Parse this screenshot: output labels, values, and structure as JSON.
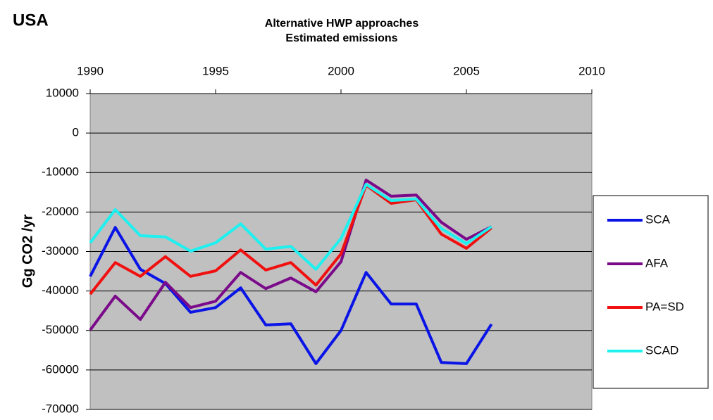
{
  "chart_data": {
    "type": "line",
    "annotation": "USA",
    "title": "Alternative HWP approaches",
    "subtitle": "Estimated emissions",
    "y_label": "Gg CO2 /yr",
    "x": [
      1990,
      1991,
      1992,
      1993,
      1994,
      1995,
      1996,
      1997,
      1998,
      1999,
      2000,
      2001,
      2002,
      2003,
      2004,
      2005,
      2006
    ],
    "xlim": [
      1990,
      2010
    ],
    "xticks": [
      1990,
      1995,
      2000,
      2005,
      2010
    ],
    "ylim": [
      -70000,
      10000
    ],
    "yticks": [
      -70000,
      -60000,
      -50000,
      -40000,
      -30000,
      -20000,
      -10000,
      0,
      10000
    ],
    "grid": true,
    "legend": "right",
    "series": [
      {
        "name": "SCA",
        "color": "#0a14e6",
        "values": [
          -36300,
          -23900,
          -34500,
          -38100,
          -45400,
          -44200,
          -39200,
          -48600,
          -48300,
          -58400,
          -50000,
          -35300,
          -43300,
          -43300,
          -58100,
          -58400,
          -48400
        ]
      },
      {
        "name": "AFA",
        "color": "#7a0a8a",
        "values": [
          -49900,
          -41300,
          -47200,
          -37800,
          -44200,
          -42600,
          -35300,
          -39400,
          -36700,
          -40200,
          -32600,
          -11900,
          -16000,
          -15700,
          -22600,
          -26900,
          -23700
        ]
      },
      {
        "name": "PA=SD",
        "color": "#f01010",
        "values": [
          -40800,
          -32800,
          -36300,
          -31300,
          -36300,
          -34900,
          -29600,
          -34700,
          -32800,
          -38500,
          -30600,
          -13200,
          -17800,
          -16900,
          -25600,
          -29200,
          -24000
        ]
      },
      {
        "name": "SCAD",
        "color": "#1ef0f0",
        "values": [
          -27800,
          -19400,
          -26000,
          -26300,
          -29900,
          -27800,
          -23000,
          -29400,
          -28700,
          -34500,
          -26700,
          -13000,
          -17100,
          -16700,
          -24200,
          -28000,
          -23700
        ]
      }
    ]
  }
}
